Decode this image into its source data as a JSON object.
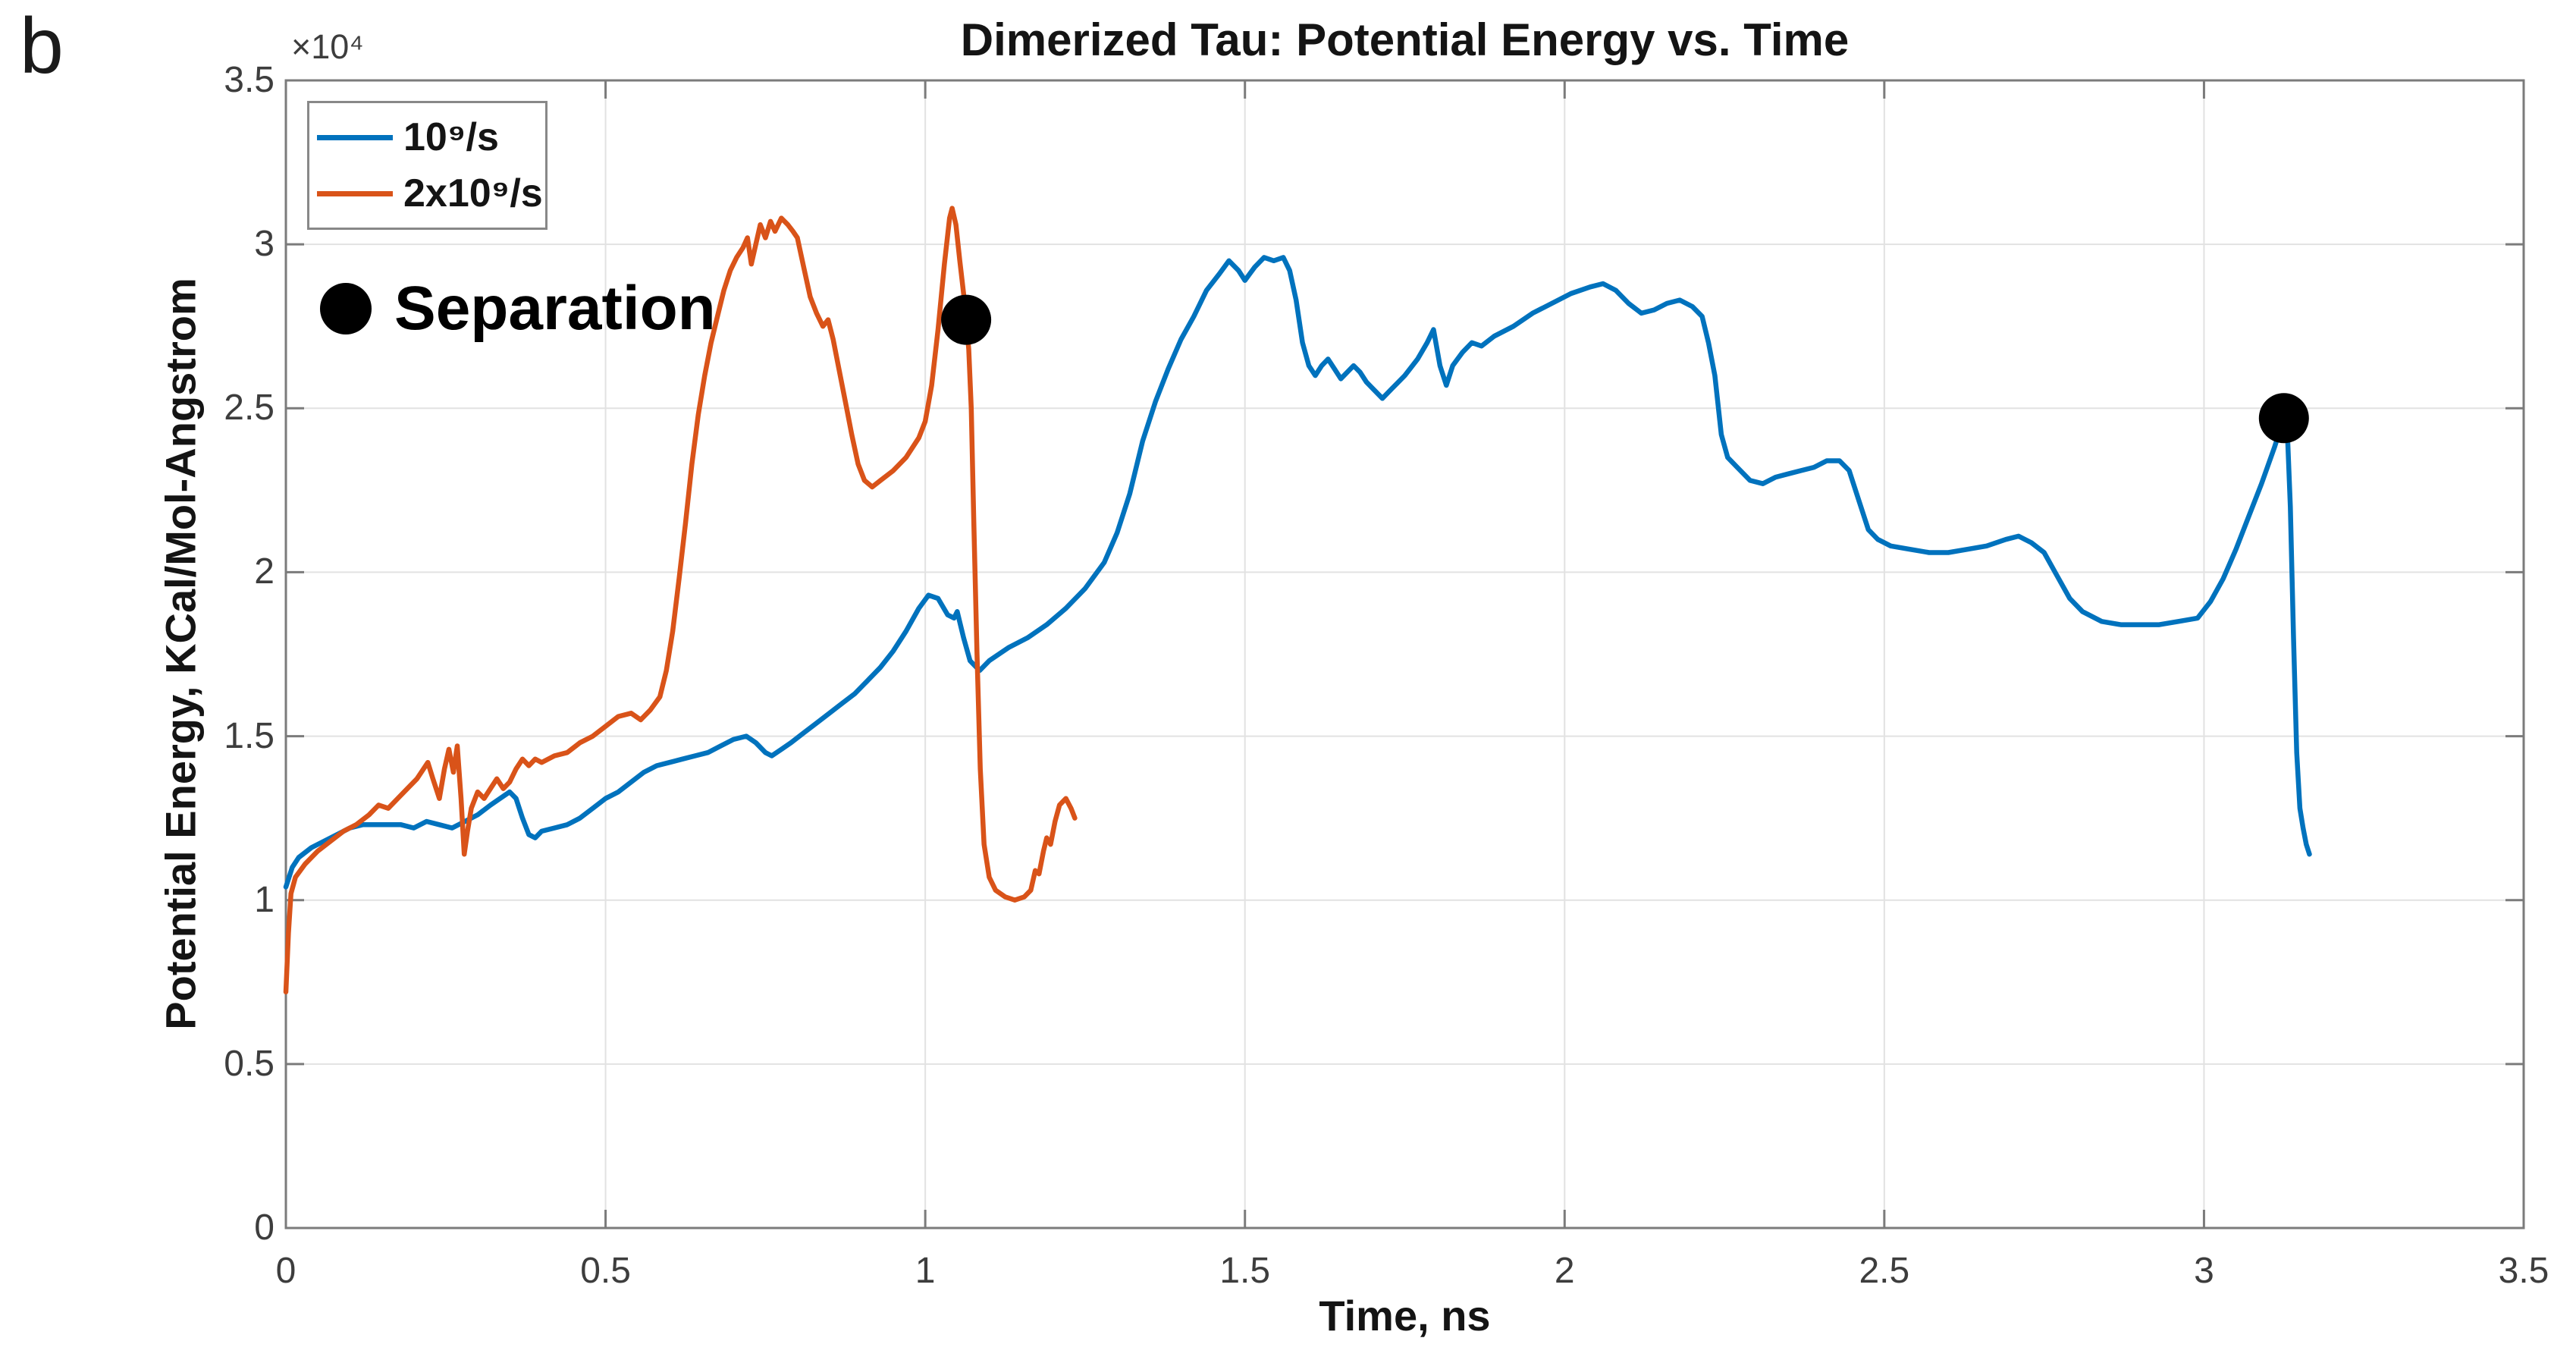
{
  "panel_label": "b",
  "chart_data": {
    "type": "line",
    "title": "Dimerized Tau: Potential Energy vs. Time",
    "xlabel": "Time, ns",
    "ylabel": "Potential Energy, KCal/Mol-Angstrom",
    "y_exponent_label": "×10⁴",
    "grid": true,
    "xlim": [
      0,
      3.5
    ],
    "ylim": [
      0,
      3.5
    ],
    "y_unit_scale": "10^4 KCal/Mol-Angstrom",
    "xticks": {
      "values": [
        0,
        0.5,
        1,
        1.5,
        2,
        2.5,
        3,
        3.5
      ],
      "labels": [
        "0",
        "0.5",
        "1",
        "1.5",
        "2",
        "2.5",
        "3",
        "3.5"
      ]
    },
    "yticks": {
      "values": [
        0,
        0.5,
        1,
        1.5,
        2,
        2.5,
        3,
        3.5
      ],
      "labels": [
        "0",
        "0.5",
        "1",
        "1.5",
        "2",
        "2.5",
        "3",
        "3.5"
      ]
    },
    "legend": {
      "position": "top-left",
      "entries": [
        {
          "label": "10⁹/s",
          "color": "#0072BD"
        },
        {
          "label": "2x10⁹/s",
          "color": "#D95319"
        }
      ]
    },
    "annotation": {
      "marker": "circle",
      "label": "Separation",
      "color": "#000000"
    },
    "series": [
      {
        "name": "10⁹/s",
        "color": "#0072BD",
        "points": [
          [
            0,
            1.04
          ],
          [
            0.01,
            1.1
          ],
          [
            0.02,
            1.13
          ],
          [
            0.04,
            1.16
          ],
          [
            0.06,
            1.18
          ],
          [
            0.08,
            1.2
          ],
          [
            0.1,
            1.22
          ],
          [
            0.12,
            1.23
          ],
          [
            0.15,
            1.23
          ],
          [
            0.18,
            1.23
          ],
          [
            0.2,
            1.22
          ],
          [
            0.22,
            1.24
          ],
          [
            0.24,
            1.23
          ],
          [
            0.26,
            1.22
          ],
          [
            0.28,
            1.24
          ],
          [
            0.3,
            1.26
          ],
          [
            0.32,
            1.29
          ],
          [
            0.335,
            1.31
          ],
          [
            0.35,
            1.33
          ],
          [
            0.36,
            1.31
          ],
          [
            0.37,
            1.25
          ],
          [
            0.38,
            1.2
          ],
          [
            0.39,
            1.19
          ],
          [
            0.4,
            1.21
          ],
          [
            0.42,
            1.22
          ],
          [
            0.44,
            1.23
          ],
          [
            0.46,
            1.25
          ],
          [
            0.48,
            1.28
          ],
          [
            0.5,
            1.31
          ],
          [
            0.52,
            1.33
          ],
          [
            0.54,
            1.36
          ],
          [
            0.56,
            1.39
          ],
          [
            0.58,
            1.41
          ],
          [
            0.6,
            1.42
          ],
          [
            0.62,
            1.43
          ],
          [
            0.64,
            1.44
          ],
          [
            0.66,
            1.45
          ],
          [
            0.68,
            1.47
          ],
          [
            0.7,
            1.49
          ],
          [
            0.72,
            1.5
          ],
          [
            0.735,
            1.48
          ],
          [
            0.75,
            1.45
          ],
          [
            0.76,
            1.44
          ],
          [
            0.775,
            1.46
          ],
          [
            0.79,
            1.48
          ],
          [
            0.81,
            1.51
          ],
          [
            0.83,
            1.54
          ],
          [
            0.85,
            1.57
          ],
          [
            0.87,
            1.6
          ],
          [
            0.89,
            1.63
          ],
          [
            0.91,
            1.67
          ],
          [
            0.93,
            1.71
          ],
          [
            0.95,
            1.76
          ],
          [
            0.97,
            1.82
          ],
          [
            0.99,
            1.89
          ],
          [
            1.005,
            1.93
          ],
          [
            1.02,
            1.92
          ],
          [
            1.035,
            1.87
          ],
          [
            1.045,
            1.86
          ],
          [
            1.05,
            1.88
          ],
          [
            1.06,
            1.8
          ],
          [
            1.07,
            1.73
          ],
          [
            1.085,
            1.7
          ],
          [
            1.1,
            1.73
          ],
          [
            1.13,
            1.77
          ],
          [
            1.16,
            1.8
          ],
          [
            1.19,
            1.84
          ],
          [
            1.22,
            1.89
          ],
          [
            1.25,
            1.95
          ],
          [
            1.28,
            2.03
          ],
          [
            1.3,
            2.12
          ],
          [
            1.32,
            2.24
          ],
          [
            1.34,
            2.4
          ],
          [
            1.36,
            2.52
          ],
          [
            1.38,
            2.62
          ],
          [
            1.4,
            2.71
          ],
          [
            1.42,
            2.78
          ],
          [
            1.44,
            2.86
          ],
          [
            1.46,
            2.91
          ],
          [
            1.475,
            2.95
          ],
          [
            1.49,
            2.92
          ],
          [
            1.5,
            2.89
          ],
          [
            1.515,
            2.93
          ],
          [
            1.53,
            2.96
          ],
          [
            1.545,
            2.95
          ],
          [
            1.56,
            2.96
          ],
          [
            1.57,
            2.92
          ],
          [
            1.58,
            2.83
          ],
          [
            1.59,
            2.7
          ],
          [
            1.6,
            2.63
          ],
          [
            1.61,
            2.6
          ],
          [
            1.62,
            2.63
          ],
          [
            1.63,
            2.65
          ],
          [
            1.64,
            2.62
          ],
          [
            1.65,
            2.59
          ],
          [
            1.66,
            2.61
          ],
          [
            1.67,
            2.63
          ],
          [
            1.68,
            2.61
          ],
          [
            1.69,
            2.58
          ],
          [
            1.7,
            2.56
          ],
          [
            1.715,
            2.53
          ],
          [
            1.73,
            2.56
          ],
          [
            1.75,
            2.6
          ],
          [
            1.77,
            2.65
          ],
          [
            1.785,
            2.7
          ],
          [
            1.795,
            2.74
          ],
          [
            1.805,
            2.63
          ],
          [
            1.815,
            2.57
          ],
          [
            1.825,
            2.63
          ],
          [
            1.84,
            2.67
          ],
          [
            1.855,
            2.7
          ],
          [
            1.87,
            2.69
          ],
          [
            1.89,
            2.72
          ],
          [
            1.92,
            2.75
          ],
          [
            1.95,
            2.79
          ],
          [
            1.98,
            2.82
          ],
          [
            2.01,
            2.85
          ],
          [
            2.04,
            2.87
          ],
          [
            2.06,
            2.88
          ],
          [
            2.08,
            2.86
          ],
          [
            2.1,
            2.82
          ],
          [
            2.12,
            2.79
          ],
          [
            2.14,
            2.8
          ],
          [
            2.16,
            2.82
          ],
          [
            2.18,
            2.83
          ],
          [
            2.2,
            2.81
          ],
          [
            2.215,
            2.78
          ],
          [
            2.225,
            2.7
          ],
          [
            2.235,
            2.6
          ],
          [
            2.245,
            2.42
          ],
          [
            2.255,
            2.35
          ],
          [
            2.27,
            2.32
          ],
          [
            2.29,
            2.28
          ],
          [
            2.31,
            2.27
          ],
          [
            2.33,
            2.29
          ],
          [
            2.35,
            2.3
          ],
          [
            2.37,
            2.31
          ],
          [
            2.39,
            2.32
          ],
          [
            2.41,
            2.34
          ],
          [
            2.43,
            2.34
          ],
          [
            2.445,
            2.31
          ],
          [
            2.46,
            2.22
          ],
          [
            2.475,
            2.13
          ],
          [
            2.49,
            2.1
          ],
          [
            2.51,
            2.08
          ],
          [
            2.54,
            2.07
          ],
          [
            2.57,
            2.06
          ],
          [
            2.6,
            2.06
          ],
          [
            2.63,
            2.07
          ],
          [
            2.66,
            2.08
          ],
          [
            2.69,
            2.1
          ],
          [
            2.71,
            2.11
          ],
          [
            2.73,
            2.09
          ],
          [
            2.75,
            2.06
          ],
          [
            2.77,
            1.99
          ],
          [
            2.79,
            1.92
          ],
          [
            2.81,
            1.88
          ],
          [
            2.84,
            1.85
          ],
          [
            2.87,
            1.84
          ],
          [
            2.9,
            1.84
          ],
          [
            2.93,
            1.84
          ],
          [
            2.96,
            1.85
          ],
          [
            2.99,
            1.86
          ],
          [
            3.01,
            1.91
          ],
          [
            3.03,
            1.98
          ],
          [
            3.05,
            2.07
          ],
          [
            3.07,
            2.17
          ],
          [
            3.09,
            2.27
          ],
          [
            3.11,
            2.38
          ],
          [
            3.125,
            2.47
          ],
          [
            3.13,
            2.45
          ],
          [
            3.135,
            2.2
          ],
          [
            3.14,
            1.8
          ],
          [
            3.145,
            1.45
          ],
          [
            3.15,
            1.28
          ],
          [
            3.155,
            1.22
          ],
          [
            3.16,
            1.17
          ],
          [
            3.165,
            1.14
          ]
        ]
      },
      {
        "name": "2x10⁹/s",
        "color": "#D95319",
        "points": [
          [
            0,
            0.72
          ],
          [
            0.004,
            0.9
          ],
          [
            0.008,
            1.02
          ],
          [
            0.015,
            1.07
          ],
          [
            0.03,
            1.11
          ],
          [
            0.05,
            1.15
          ],
          [
            0.07,
            1.18
          ],
          [
            0.09,
            1.21
          ],
          [
            0.11,
            1.23
          ],
          [
            0.13,
            1.26
          ],
          [
            0.145,
            1.29
          ],
          [
            0.16,
            1.28
          ],
          [
            0.175,
            1.31
          ],
          [
            0.19,
            1.34
          ],
          [
            0.205,
            1.37
          ],
          [
            0.222,
            1.42
          ],
          [
            0.23,
            1.37
          ],
          [
            0.24,
            1.31
          ],
          [
            0.248,
            1.4
          ],
          [
            0.255,
            1.46
          ],
          [
            0.262,
            1.39
          ],
          [
            0.268,
            1.47
          ],
          [
            0.274,
            1.31
          ],
          [
            0.279,
            1.14
          ],
          [
            0.284,
            1.21
          ],
          [
            0.29,
            1.28
          ],
          [
            0.3,
            1.33
          ],
          [
            0.31,
            1.31
          ],
          [
            0.32,
            1.34
          ],
          [
            0.33,
            1.37
          ],
          [
            0.34,
            1.34
          ],
          [
            0.35,
            1.36
          ],
          [
            0.36,
            1.4
          ],
          [
            0.37,
            1.43
          ],
          [
            0.38,
            1.41
          ],
          [
            0.39,
            1.43
          ],
          [
            0.4,
            1.42
          ],
          [
            0.42,
            1.44
          ],
          [
            0.44,
            1.45
          ],
          [
            0.46,
            1.48
          ],
          [
            0.48,
            1.5
          ],
          [
            0.5,
            1.53
          ],
          [
            0.52,
            1.56
          ],
          [
            0.54,
            1.57
          ],
          [
            0.555,
            1.55
          ],
          [
            0.57,
            1.58
          ],
          [
            0.585,
            1.62
          ],
          [
            0.595,
            1.7
          ],
          [
            0.605,
            1.82
          ],
          [
            0.615,
            1.98
          ],
          [
            0.625,
            2.15
          ],
          [
            0.635,
            2.33
          ],
          [
            0.645,
            2.48
          ],
          [
            0.655,
            2.6
          ],
          [
            0.665,
            2.7
          ],
          [
            0.675,
            2.78
          ],
          [
            0.685,
            2.86
          ],
          [
            0.695,
            2.92
          ],
          [
            0.705,
            2.96
          ],
          [
            0.715,
            2.99
          ],
          [
            0.722,
            3.02
          ],
          [
            0.728,
            2.94
          ],
          [
            0.735,
            3.0
          ],
          [
            0.742,
            3.06
          ],
          [
            0.75,
            3.02
          ],
          [
            0.758,
            3.07
          ],
          [
            0.765,
            3.04
          ],
          [
            0.775,
            3.08
          ],
          [
            0.785,
            3.06
          ],
          [
            0.793,
            3.04
          ],
          [
            0.8,
            3.02
          ],
          [
            0.81,
            2.93
          ],
          [
            0.82,
            2.84
          ],
          [
            0.83,
            2.79
          ],
          [
            0.84,
            2.75
          ],
          [
            0.848,
            2.77
          ],
          [
            0.856,
            2.71
          ],
          [
            0.865,
            2.62
          ],
          [
            0.875,
            2.52
          ],
          [
            0.885,
            2.42
          ],
          [
            0.895,
            2.33
          ],
          [
            0.905,
            2.28
          ],
          [
            0.917,
            2.26
          ],
          [
            0.93,
            2.28
          ],
          [
            0.95,
            2.31
          ],
          [
            0.97,
            2.35
          ],
          [
            0.99,
            2.41
          ],
          [
            1.0,
            2.46
          ],
          [
            1.01,
            2.57
          ],
          [
            1.02,
            2.74
          ],
          [
            1.03,
            2.94
          ],
          [
            1.038,
            3.08
          ],
          [
            1.042,
            3.11
          ],
          [
            1.048,
            3.06
          ],
          [
            1.054,
            2.95
          ],
          [
            1.06,
            2.85
          ],
          [
            1.064,
            2.77
          ],
          [
            1.068,
            2.68
          ],
          [
            1.072,
            2.5
          ],
          [
            1.076,
            2.15
          ],
          [
            1.081,
            1.75
          ],
          [
            1.086,
            1.4
          ],
          [
            1.092,
            1.17
          ],
          [
            1.1,
            1.07
          ],
          [
            1.11,
            1.03
          ],
          [
            1.125,
            1.01
          ],
          [
            1.14,
            1.0
          ],
          [
            1.155,
            1.01
          ],
          [
            1.165,
            1.03
          ],
          [
            1.172,
            1.09
          ],
          [
            1.178,
            1.08
          ],
          [
            1.185,
            1.15
          ],
          [
            1.19,
            1.19
          ],
          [
            1.196,
            1.17
          ],
          [
            1.203,
            1.24
          ],
          [
            1.21,
            1.29
          ],
          [
            1.22,
            1.31
          ],
          [
            1.228,
            1.28
          ],
          [
            1.234,
            1.25
          ]
        ]
      }
    ],
    "separation_markers": [
      {
        "series": "2x10⁹/s",
        "x": 1.064,
        "y": 2.77
      },
      {
        "series": "10⁹/s",
        "x": 3.125,
        "y": 2.47
      }
    ]
  }
}
